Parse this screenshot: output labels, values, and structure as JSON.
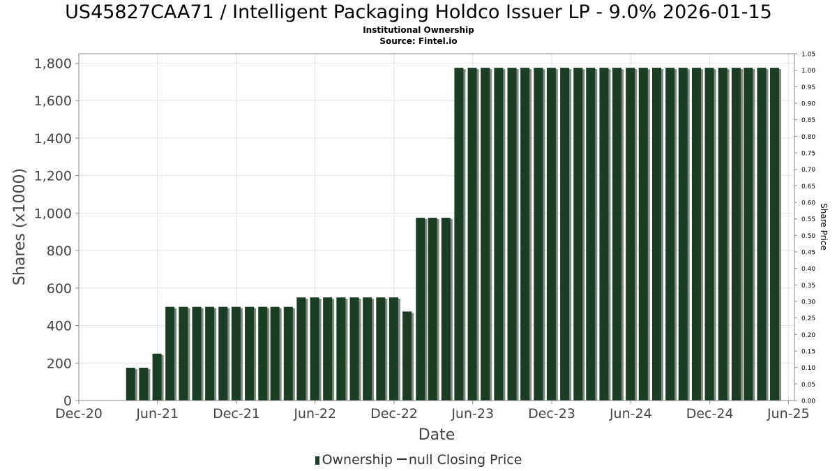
{
  "header": {
    "title": "US45827CAA71 / Intelligent Packaging Holdco Issuer LP - 9.0% 2026-01-15",
    "subtitle": "Institutional Ownership",
    "source": "Source: Fintel.io"
  },
  "legend": {
    "ownership": "Ownership",
    "price": "null Closing Price"
  },
  "colors": {
    "bar": "#1a3d23",
    "bar_shadow": "#7f8a80",
    "grid": "#e2e2e2",
    "axis": "#888888"
  },
  "chart_data": {
    "type": "bar",
    "xlabel": "Date",
    "ylabel": "Shares (x1000)",
    "y2label": "Share Price",
    "ylim": [
      0,
      1850
    ],
    "y2lim": [
      0,
      1.05
    ],
    "x_range": [
      "2020-12-01",
      "2025-06-15"
    ],
    "y_ticks": [
      0,
      200,
      400,
      600,
      800,
      1000,
      1200,
      1400,
      1600,
      1800
    ],
    "y_tick_labels": [
      "0",
      "200",
      "400",
      "600",
      "800",
      "1,000",
      "1,200",
      "1,400",
      "1,600",
      "1,800"
    ],
    "y2_ticks": [
      0.0,
      0.05,
      0.1,
      0.15,
      0.2,
      0.25,
      0.3,
      0.35,
      0.4,
      0.45,
      0.5,
      0.55,
      0.6,
      0.65,
      0.7,
      0.75,
      0.8,
      0.85,
      0.9,
      0.95,
      1.0,
      1.05
    ],
    "y2_tick_labels": [
      "0.00",
      "0.05",
      "0.10",
      "0.15",
      "0.20",
      "0.25",
      "0.30",
      "0.35",
      "0.40",
      "0.45",
      "0.50",
      "0.55",
      "0.60",
      "0.65",
      "0.70",
      "0.75",
      "0.80",
      "0.85",
      "0.90",
      "0.95",
      "1.00",
      "1.05"
    ],
    "x_ticks": [
      "2020-12-01",
      "2021-06-01",
      "2021-12-01",
      "2022-06-01",
      "2022-12-01",
      "2023-06-01",
      "2023-12-01",
      "2024-06-01",
      "2024-12-01",
      "2025-06-01"
    ],
    "x_tick_labels": [
      "Dec-20",
      "Jun-21",
      "Dec-21",
      "Jun-22",
      "Dec-22",
      "Jun-23",
      "Dec-23",
      "Jun-24",
      "Dec-24",
      "Jun-25"
    ],
    "grid": true,
    "legend_position": "bottom",
    "series": [
      {
        "name": "Ownership",
        "dates": [
          "2021-03-31",
          "2021-04-30",
          "2021-05-31",
          "2021-06-30",
          "2021-07-31",
          "2021-08-31",
          "2021-09-30",
          "2021-10-31",
          "2021-11-30",
          "2021-12-31",
          "2022-01-31",
          "2022-02-28",
          "2022-03-31",
          "2022-04-30",
          "2022-05-31",
          "2022-06-30",
          "2022-07-31",
          "2022-08-31",
          "2022-09-30",
          "2022-10-31",
          "2022-11-30",
          "2022-12-31",
          "2023-01-31",
          "2023-02-28",
          "2023-03-31",
          "2023-04-30",
          "2023-05-31",
          "2023-06-30",
          "2023-07-31",
          "2023-08-31",
          "2023-09-30",
          "2023-10-31",
          "2023-11-30",
          "2023-12-31",
          "2024-01-31",
          "2024-02-29",
          "2024-03-31",
          "2024-04-30",
          "2024-05-31",
          "2024-06-30",
          "2024-07-31",
          "2024-08-31",
          "2024-09-30",
          "2024-10-31",
          "2024-11-30",
          "2024-12-31",
          "2025-01-31",
          "2025-02-28",
          "2025-03-31",
          "2025-04-30"
        ],
        "values": [
          175,
          175,
          250,
          500,
          500,
          500,
          500,
          500,
          500,
          500,
          500,
          500,
          500,
          550,
          550,
          550,
          550,
          550,
          550,
          550,
          550,
          475,
          975,
          975,
          975,
          1775,
          1775,
          1775,
          1775,
          1775,
          1775,
          1775,
          1775,
          1775,
          1775,
          1775,
          1775,
          1775,
          1775,
          1775,
          1775,
          1775,
          1775,
          1775,
          1775,
          1775,
          1775,
          1775,
          1775,
          1775
        ]
      },
      {
        "name": "null Closing Price",
        "values": []
      }
    ]
  }
}
